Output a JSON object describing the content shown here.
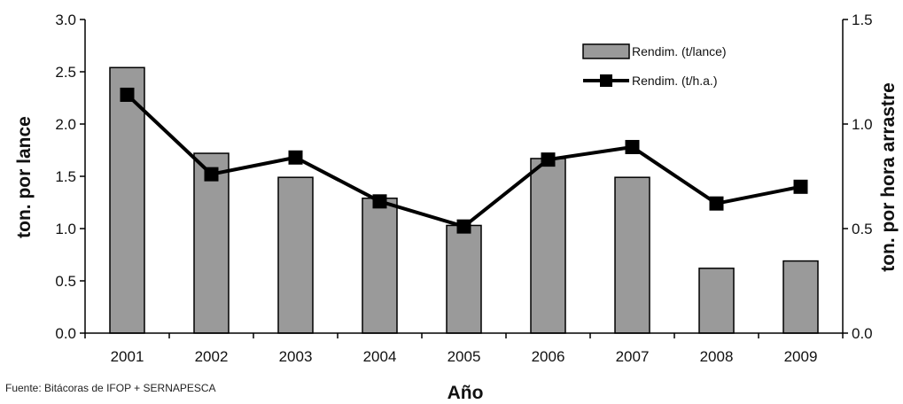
{
  "chart_data": {
    "type": "bar",
    "categories": [
      "2001",
      "2002",
      "2003",
      "2004",
      "2005",
      "2006",
      "2007",
      "2008",
      "2009"
    ],
    "series": [
      {
        "name": "Rendim. (t/lance)",
        "type": "bar",
        "axis": "left",
        "values": [
          2.54,
          1.72,
          1.49,
          1.29,
          1.03,
          1.67,
          1.49,
          0.62,
          0.69
        ]
      },
      {
        "name": "Rendim. (t/h.a.)",
        "type": "line",
        "axis": "right",
        "values": [
          1.14,
          0.76,
          0.84,
          0.63,
          0.51,
          0.83,
          0.89,
          0.62,
          0.7
        ]
      }
    ],
    "xlabel": "Año",
    "ylabel": "ton. por lance",
    "y2label": "ton. por hora arrastre",
    "ylim": [
      0,
      3.0
    ],
    "y2lim": [
      0,
      1.5
    ],
    "yticks": [
      "0.0",
      "0.5",
      "1.0",
      "1.5",
      "2.0",
      "2.5",
      "3.0"
    ],
    "y2ticks": [
      "0.0",
      "0.5",
      "1.0",
      "1.5"
    ],
    "grid": false,
    "legend_position": "top-right",
    "colors": {
      "bar_fill": "#9a9a9a",
      "bar_stroke": "#000000",
      "line": "#000000",
      "marker": "#000000"
    }
  },
  "source_note": "Fuente: Bitácoras de IFOP + SERNAPESCA"
}
